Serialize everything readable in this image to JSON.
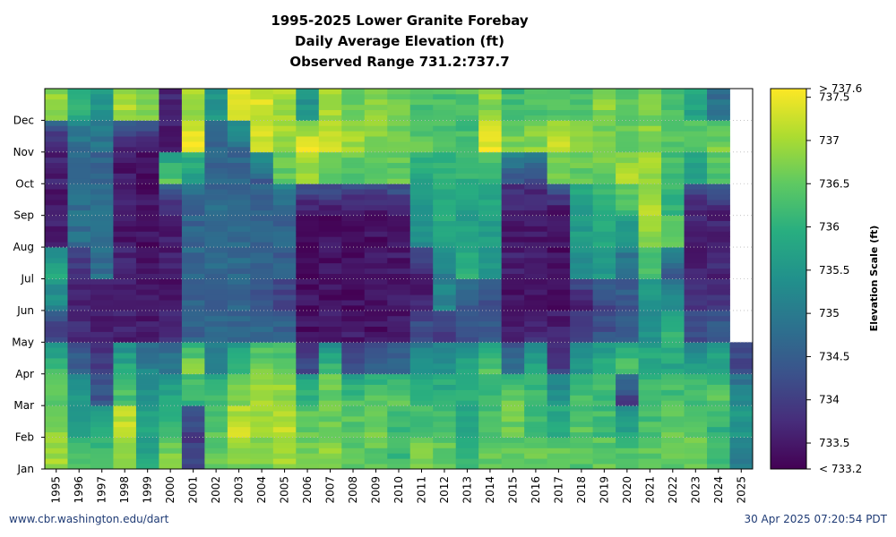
{
  "chart_data": {
    "type": "heatmap",
    "title": [
      "1995-2025 Lower Granite Forebay",
      "Daily Average Elevation (ft)",
      "Observed Range 731.2:737.7"
    ],
    "x_tick_labels": [
      "1995",
      "1996",
      "1997",
      "1998",
      "1999",
      "2000",
      "2001",
      "2002",
      "2003",
      "2004",
      "2005",
      "2006",
      "2007",
      "2008",
      "2009",
      "2010",
      "2011",
      "2012",
      "2013",
      "2014",
      "2015",
      "2016",
      "2017",
      "2018",
      "2019",
      "2020",
      "2021",
      "2022",
      "2023",
      "2024",
      "2025"
    ],
    "y_tick_labels": [
      "Jan",
      "Feb",
      "Mar",
      "Apr",
      "May",
      "Jun",
      "Jul",
      "Aug",
      "Sep",
      "Oct",
      "Nov",
      "Dec"
    ],
    "y_description": "day of year (Jan at bottom, Dec at top)",
    "colorbar": {
      "label": "Elevation Scale (ft)",
      "range": [
        733.2,
        737.6
      ],
      "ticks": [
        733.5,
        734,
        734.5,
        735,
        735.5,
        736,
        736.5,
        737,
        737.5
      ],
      "tick_labels": [
        "733.5",
        "734",
        "734.5",
        "735",
        "735.5",
        "736",
        "736.5",
        "737",
        "737.5"
      ],
      "min_label": "< 733.2",
      "max_label": "> 737.6",
      "colormap": "viridis"
    },
    "grid": "dotted horizontal at month starts",
    "data_note": "2025 data ends late April",
    "profiles": [
      {
        "year": "1995",
        "months": [
          737.0,
          736.8,
          736.5,
          736.2,
          734.0,
          735.3,
          735.8,
          733.6,
          733.5,
          733.6,
          733.5,
          736.8
        ]
      },
      {
        "year": "1996",
        "months": [
          736.5,
          735.5,
          735.6,
          734.6,
          733.8,
          733.7,
          733.8,
          734.8,
          734.8,
          734.8,
          734.8,
          736.0
        ]
      },
      {
        "year": "1997",
        "months": [
          736.2,
          736.0,
          734.4,
          733.9,
          733.6,
          733.4,
          734.8,
          734.8,
          734.8,
          734.5,
          734.8,
          735.5
        ]
      },
      {
        "year": "1998",
        "months": [
          736.7,
          737.3,
          736.3,
          736.0,
          733.6,
          733.6,
          733.6,
          733.5,
          733.5,
          733.5,
          733.5,
          737.0
        ]
      },
      {
        "year": "1999",
        "months": [
          735.8,
          735.7,
          735.4,
          735.2,
          733.5,
          733.5,
          733.5,
          733.4,
          733.4,
          733.4,
          733.4,
          736.8
        ]
      },
      {
        "year": "2000",
        "months": [
          736.8,
          736.0,
          735.8,
          735.0,
          733.7,
          733.5,
          733.5,
          733.6,
          733.6,
          736.5,
          733.6,
          733.6
        ]
      },
      {
        "year": "2001",
        "months": [
          734.0,
          734.0,
          736.0,
          736.8,
          734.6,
          734.6,
          734.7,
          734.6,
          734.6,
          735.5,
          737.5,
          737.0
        ]
      },
      {
        "year": "2002",
        "months": [
          736.5,
          736.4,
          736.2,
          735.2,
          734.7,
          734.6,
          734.7,
          734.7,
          734.7,
          734.6,
          734.6,
          735.5
        ]
      },
      {
        "year": "2003",
        "months": [
          736.7,
          737.2,
          736.8,
          736.0,
          734.6,
          734.6,
          734.7,
          734.7,
          734.7,
          734.6,
          734.7,
          737.3
        ]
      },
      {
        "year": "2004",
        "months": [
          736.6,
          737.0,
          737.0,
          736.8,
          734.7,
          734.4,
          734.6,
          734.6,
          734.6,
          734.5,
          737.3,
          737.3
        ]
      },
      {
        "year": "2005",
        "months": [
          737.0,
          737.2,
          736.9,
          736.7,
          734.6,
          734.0,
          734.5,
          734.6,
          734.7,
          736.5,
          737.0,
          737.0
        ]
      },
      {
        "year": "2006",
        "months": [
          736.6,
          736.5,
          736.2,
          734.2,
          733.4,
          733.4,
          733.4,
          733.4,
          733.4,
          736.8,
          737.4,
          735.5
        ]
      },
      {
        "year": "2007",
        "months": [
          736.8,
          736.6,
          736.6,
          736.2,
          733.5,
          733.4,
          733.4,
          733.4,
          733.4,
          736.5,
          737.3,
          737.0
        ]
      },
      {
        "year": "2008",
        "months": [
          736.4,
          736.4,
          736.4,
          734.2,
          733.5,
          733.4,
          733.4,
          733.4,
          733.4,
          736.3,
          737.0,
          736.6
        ]
      },
      {
        "year": "2009",
        "months": [
          736.5,
          736.6,
          736.5,
          734.6,
          733.4,
          733.4,
          733.4,
          733.4,
          733.4,
          736.5,
          736.8,
          736.8
        ]
      },
      {
        "year": "2010",
        "months": [
          736.2,
          736.1,
          736.6,
          734.8,
          733.5,
          733.5,
          733.5,
          733.5,
          733.5,
          736.5,
          736.7,
          736.6
        ]
      },
      {
        "year": "2011",
        "months": [
          736.8,
          736.3,
          736.0,
          735.4,
          734.3,
          733.6,
          733.6,
          735.4,
          735.6,
          735.8,
          736.5,
          736.3
        ]
      },
      {
        "year": "2012",
        "months": [
          736.6,
          736.2,
          736.0,
          735.5,
          734.0,
          735.2,
          735.1,
          735.8,
          735.9,
          736.0,
          736.3,
          736.3
        ]
      },
      {
        "year": "2013",
        "months": [
          736.0,
          735.8,
          736.0,
          735.8,
          734.4,
          734.4,
          735.9,
          735.7,
          735.7,
          736.0,
          736.2,
          736.4
        ]
      },
      {
        "year": "2014",
        "months": [
          736.5,
          736.3,
          736.1,
          736.4,
          734.5,
          734.3,
          735.6,
          735.6,
          735.7,
          736.0,
          737.5,
          736.8
        ]
      },
      {
        "year": "2015",
        "months": [
          736.4,
          736.6,
          736.6,
          734.8,
          733.6,
          733.4,
          733.6,
          733.5,
          733.6,
          734.4,
          736.7,
          736.2
        ]
      },
      {
        "year": "2016",
        "months": [
          736.6,
          736.2,
          736.2,
          735.8,
          733.7,
          733.5,
          733.5,
          733.5,
          733.5,
          734.3,
          736.8,
          736.4
        ]
      },
      {
        "year": "2017",
        "months": [
          736.6,
          736.0,
          735.5,
          734.0,
          733.6,
          733.4,
          733.4,
          733.4,
          733.4,
          736.5,
          737.3,
          736.3
        ]
      },
      {
        "year": "2018",
        "months": [
          736.4,
          736.4,
          736.3,
          735.6,
          733.9,
          733.6,
          735.4,
          735.6,
          735.6,
          736.5,
          737.0,
          736.4
        ]
      },
      {
        "year": "2019",
        "months": [
          736.5,
          736.2,
          736.2,
          736.0,
          734.3,
          734.0,
          735.6,
          735.8,
          736.0,
          736.6,
          736.7,
          736.8
        ]
      },
      {
        "year": "2020",
        "months": [
          736.4,
          735.8,
          734.0,
          736.4,
          734.5,
          734.4,
          734.8,
          735.5,
          736.2,
          737.0,
          736.6,
          736.5
        ]
      },
      {
        "year": "2021",
        "months": [
          736.5,
          736.3,
          736.2,
          735.9,
          735.4,
          735.3,
          736.2,
          736.8,
          737.0,
          736.9,
          736.8,
          736.6
        ]
      },
      {
        "year": "2022",
        "months": [
          736.5,
          736.6,
          736.3,
          735.8,
          736.2,
          735.2,
          734.5,
          736.5,
          736.0,
          736.2,
          736.4,
          736.3
        ]
      },
      {
        "year": "2023",
        "months": [
          736.7,
          736.4,
          736.2,
          735.7,
          734.2,
          733.8,
          733.6,
          733.6,
          733.6,
          735.6,
          736.5,
          735.8
        ]
      },
      {
        "year": "2024",
        "months": [
          736.3,
          736.0,
          736.4,
          735.9,
          734.5,
          733.8,
          733.7,
          733.6,
          733.6,
          736.3,
          736.8,
          734.8
        ]
      },
      {
        "year": "2025",
        "months": [
          735.0,
          735.6,
          735.2,
          734.2
        ]
      }
    ]
  },
  "footer": {
    "left": "www.cbr.washington.edu/dart",
    "right": "30 Apr 2025 07:20:54 PDT"
  },
  "colors": {
    "footer_text": "#1f3b75",
    "grid": "#bbbbbb"
  }
}
